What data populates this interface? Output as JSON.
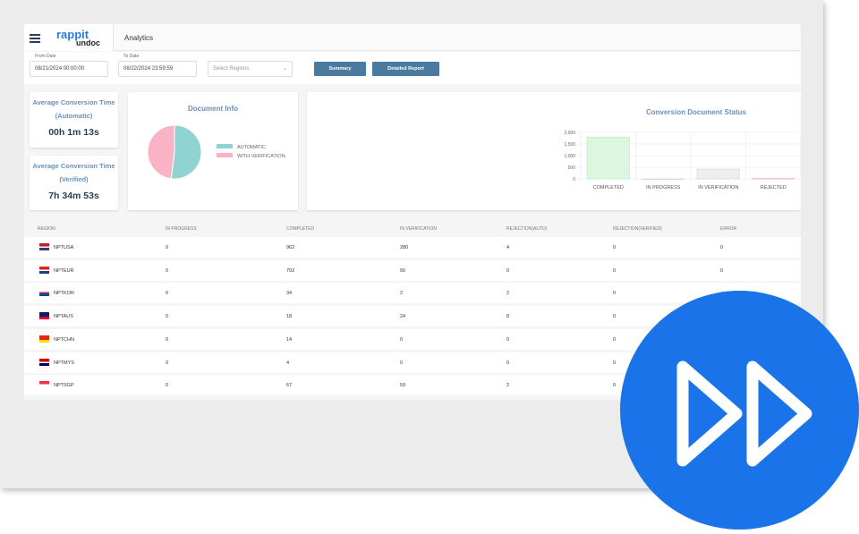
{
  "app": {
    "logo_top": "rappit",
    "logo_bottom": "undoc",
    "title": "Analytics"
  },
  "filters": {
    "from_label": "From Date",
    "from_value": "08/21/2024 00:00:00",
    "to_label": "To Date",
    "to_value": "08/22/2024 23:59:59",
    "region_placeholder": "Select Regions",
    "summary_label": "Summary",
    "detailed_label": "Detailed Report"
  },
  "kpis": [
    {
      "title1": "Average Conversion Time",
      "title2": "(Automatic)",
      "value": "00h 1m 13s"
    },
    {
      "title1": "Average Conversion Time",
      "title2": "(Verified)",
      "value": "7h 34m 53s"
    }
  ],
  "chart_data": [
    {
      "type": "pie",
      "title": "Document Info",
      "labels": [
        "AUTOMATIC",
        "WITH VERIFICATION"
      ],
      "values": [
        52,
        48
      ],
      "colors": [
        "#8fd3d3",
        "#f9b3c4"
      ],
      "legend": "right"
    },
    {
      "type": "bar",
      "title": "Conversion Document Status",
      "categories": [
        "COMPLETED",
        "IN PROGRESS",
        "IN VERIFICATION",
        "REJECTED"
      ],
      "values": [
        1801,
        0,
        421,
        16
      ],
      "colors": [
        "#dcf7df",
        "#eeeeee",
        "#eeeeee",
        "#fde0e0"
      ],
      "ylim": [
        0,
        2000
      ],
      "yticks": [
        "0",
        "500",
        "1,000",
        "1,500",
        "2,000"
      ],
      "grid": true
    }
  ],
  "table": {
    "headers": [
      "REGION",
      "IN PROGRESS",
      "COMPLETED",
      "IN VERIFICATION",
      "REJECTION(AUTO)",
      "REJECTION(VERIFIED)",
      "ERROR"
    ],
    "rows": [
      {
        "flag": "us-flag",
        "cells": [
          "NPTUSA",
          "0",
          "962",
          "280",
          "4",
          "0",
          "0"
        ]
      },
      {
        "flag": "eu-flag",
        "cells": [
          "NPTEUR",
          "0",
          "702",
          "56",
          "0",
          "0",
          "0"
        ]
      },
      {
        "flag": "kr-flag",
        "cells": [
          "NPTKOR",
          "0",
          "34",
          "2",
          "2",
          "0",
          ""
        ]
      },
      {
        "flag": "au-flag",
        "cells": [
          "NPTAUS",
          "0",
          "18",
          "24",
          "8",
          "0",
          ""
        ]
      },
      {
        "flag": "cn-flag",
        "cells": [
          "NPTCHN",
          "0",
          "14",
          "0",
          "0",
          "0",
          ""
        ]
      },
      {
        "flag": "my-flag",
        "cells": [
          "NPTMYS",
          "0",
          "4",
          "0",
          "0",
          "0",
          ""
        ]
      },
      {
        "flag": "sg-flag",
        "cells": [
          "NPTSGP",
          "0",
          "67",
          "59",
          "2",
          "0",
          ""
        ]
      }
    ]
  },
  "overlay": {
    "icon": "fast-forward-icon",
    "color": "#1a73e8"
  }
}
